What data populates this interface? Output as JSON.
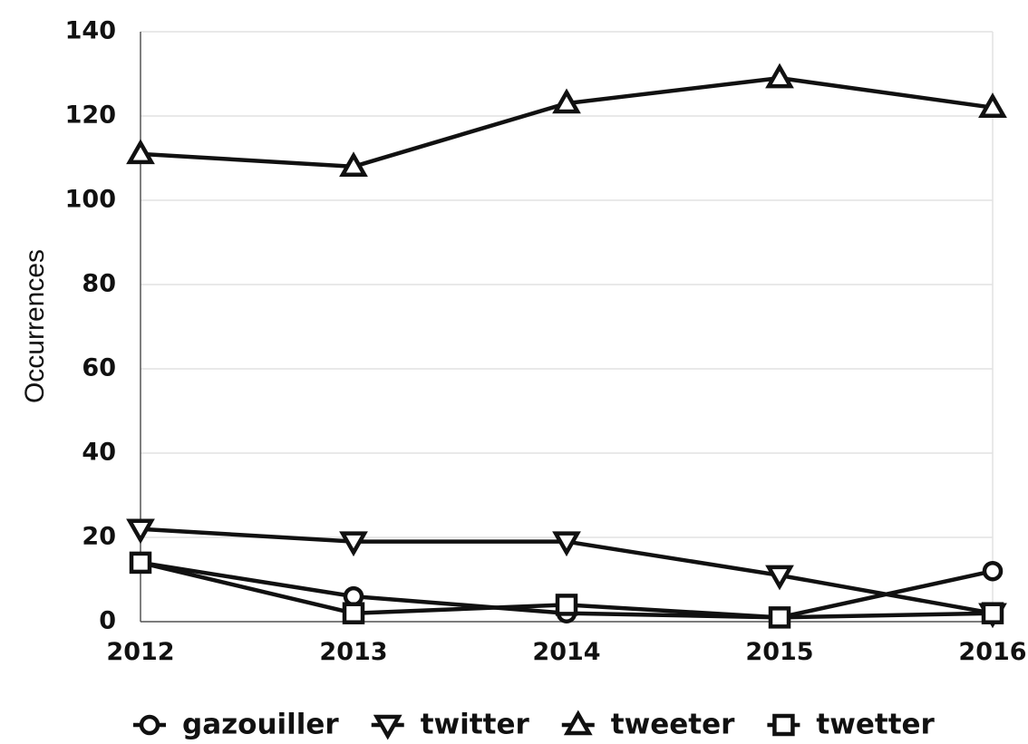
{
  "chart_data": {
    "type": "line",
    "title": "",
    "xlabel": "",
    "ylabel": "Occurrences",
    "categories": [
      "2012",
      "2013",
      "2014",
      "2015",
      "2016"
    ],
    "ylim": [
      0,
      140
    ],
    "yticks": [
      "0",
      "20",
      "40",
      "60",
      "80",
      "100",
      "120",
      "140"
    ],
    "grid": "horizontal",
    "legend_position": "bottom",
    "series": [
      {
        "name": "gazouiller",
        "marker": "circle",
        "values": [
          14,
          6,
          2,
          1,
          12
        ]
      },
      {
        "name": "twitter",
        "marker": "triangle-down",
        "values": [
          22,
          19,
          19,
          11,
          2
        ]
      },
      {
        "name": "tweeter",
        "marker": "triangle-up",
        "values": [
          111,
          108,
          123,
          129,
          122
        ]
      },
      {
        "name": "twetter",
        "marker": "square",
        "values": [
          14,
          2,
          4,
          1,
          2
        ]
      }
    ],
    "line_color": "#111111",
    "marker_fill": "#ffffff"
  }
}
